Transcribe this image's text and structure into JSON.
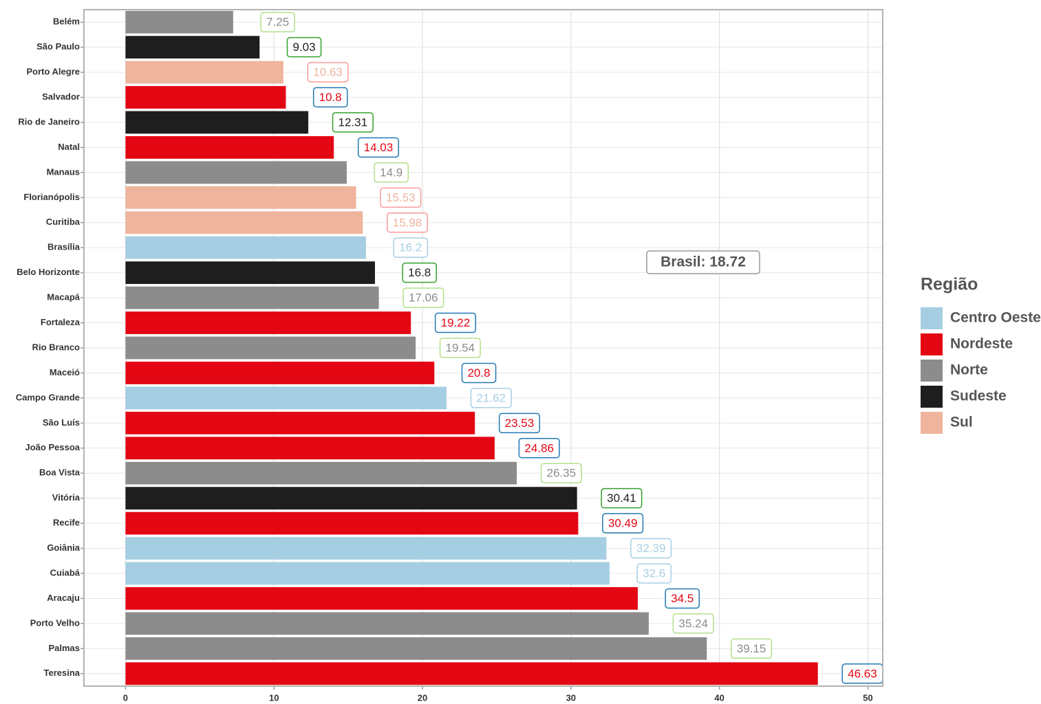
{
  "chart_data": {
    "type": "bar",
    "orientation": "horizontal",
    "categories": [
      "Belém",
      "São Paulo",
      "Porto Alegre",
      "Salvador",
      "Rio de Janeiro",
      "Natal",
      "Manaus",
      "Florianópolis",
      "Curitiba",
      "Brasília",
      "Belo Horizonte",
      "Macapá",
      "Fortaleza",
      "Rio Branco",
      "Maceió",
      "Campo Grande",
      "São Luís",
      "João Pessoa",
      "Boa Vista",
      "Vitória",
      "Recife",
      "Goiânia",
      "Cuiabá",
      "Aracaju",
      "Porto Velho",
      "Palmas",
      "Teresina"
    ],
    "series": [
      {
        "name": "Centro Oeste",
        "color": "#a6cee3",
        "label_border": "#a6cee3",
        "values": [
          null,
          null,
          null,
          null,
          null,
          null,
          null,
          null,
          null,
          16.2,
          null,
          null,
          null,
          null,
          null,
          21.62,
          null,
          null,
          null,
          null,
          null,
          32.39,
          32.6,
          null,
          null,
          null,
          null
        ]
      },
      {
        "name": "Nordeste",
        "color": "#e30613",
        "label_border": "#1f78b4",
        "values": [
          null,
          null,
          null,
          10.8,
          null,
          14.03,
          null,
          null,
          null,
          null,
          null,
          null,
          19.22,
          null,
          20.8,
          null,
          23.53,
          24.86,
          null,
          null,
          30.49,
          null,
          null,
          34.5,
          null,
          null,
          46.63
        ]
      },
      {
        "name": "Norte",
        "color": "#8c8c8c",
        "label_border": "#b2df8a",
        "values": [
          7.25,
          null,
          null,
          null,
          null,
          null,
          14.9,
          null,
          null,
          null,
          null,
          17.06,
          null,
          19.54,
          null,
          null,
          null,
          null,
          26.35,
          null,
          null,
          null,
          null,
          null,
          35.24,
          39.15,
          null
        ]
      },
      {
        "name": "Sudeste",
        "color": "#1e1e1e",
        "label_border": "#33a02c",
        "values": [
          null,
          9.03,
          null,
          null,
          12.31,
          null,
          null,
          null,
          null,
          null,
          16.8,
          null,
          null,
          null,
          null,
          null,
          null,
          null,
          null,
          30.41,
          null,
          null,
          null,
          null,
          null,
          null,
          null
        ]
      },
      {
        "name": "Sul",
        "color": "#efb49d",
        "label_border": "#fb9a99",
        "values": [
          null,
          null,
          10.63,
          null,
          null,
          null,
          null,
          15.53,
          15.98,
          null,
          null,
          null,
          null,
          null,
          null,
          null,
          null,
          null,
          null,
          null,
          null,
          null,
          null,
          null,
          null,
          null,
          null
        ]
      }
    ],
    "legend_title": "Região",
    "annotation": "Brasil: 18.72",
    "xlim": [
      -2.8,
      51
    ],
    "xticks": [
      0,
      10,
      20,
      30,
      40,
      50
    ],
    "grid": true
  }
}
